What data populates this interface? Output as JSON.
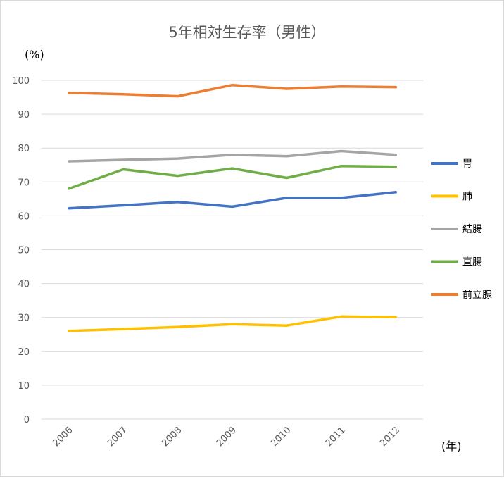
{
  "chart_data": {
    "type": "line",
    "title": "5年相対生存率（男性）",
    "y_unit_label": "(%)",
    "x_unit_label": "(年)",
    "categories": [
      "2006",
      "2007",
      "2008",
      "2009",
      "2010",
      "2011",
      "2012"
    ],
    "ylim": [
      0,
      100
    ],
    "yticks": [
      0,
      10,
      20,
      30,
      40,
      50,
      60,
      70,
      80,
      90,
      100
    ],
    "grid": true,
    "legend_position": "right",
    "series": [
      {
        "name": "胃",
        "color": "#4472c4",
        "values": [
          62.2,
          63.1,
          64.1,
          62.7,
          65.3,
          65.3,
          67.0
        ]
      },
      {
        "name": "肺",
        "color": "#ffc000",
        "values": [
          26.0,
          26.6,
          27.2,
          28.0,
          27.6,
          30.3,
          30.1
        ]
      },
      {
        "name": "結腸",
        "color": "#a5a5a5",
        "values": [
          76.1,
          76.5,
          76.9,
          78.0,
          77.6,
          79.1,
          78.0
        ]
      },
      {
        "name": "直腸",
        "color": "#70ad47",
        "values": [
          68.0,
          73.7,
          71.8,
          74.0,
          71.2,
          74.7,
          74.5
        ]
      },
      {
        "name": "前立腺",
        "color": "#ed7d31",
        "values": [
          96.3,
          95.9,
          95.3,
          98.6,
          97.5,
          98.2,
          98.0
        ]
      }
    ]
  }
}
